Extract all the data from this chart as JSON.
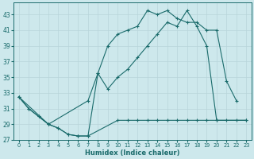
{
  "xlabel": "Humidex (Indice chaleur)",
  "bg_color": "#cde8ec",
  "grid_color": "#b8d5da",
  "line_color": "#1a6b6b",
  "xlim": [
    -0.5,
    23.5
  ],
  "ylim": [
    27,
    44.5
  ],
  "xticks": [
    0,
    1,
    2,
    3,
    4,
    5,
    6,
    7,
    8,
    9,
    10,
    11,
    12,
    13,
    14,
    15,
    16,
    17,
    18,
    19,
    20,
    21,
    22,
    23
  ],
  "yticks": [
    27,
    29,
    31,
    33,
    35,
    37,
    39,
    41,
    43
  ],
  "curve1_x": [
    0,
    1,
    2,
    3,
    4,
    5,
    6,
    7,
    8,
    9,
    10,
    11,
    12,
    13,
    14,
    15,
    16,
    17,
    18,
    19,
    20,
    21,
    22
  ],
  "curve1_y": [
    32.5,
    31.0,
    30.0,
    29.0,
    28.5,
    27.7,
    27.5,
    27.5,
    35.5,
    39.0,
    40.5,
    41.0,
    41.5,
    43.5,
    43.0,
    43.5,
    42.5,
    42.0,
    42.0,
    41.0,
    41.0,
    34.5,
    32.0
  ],
  "curve2_x": [
    0,
    3,
    7,
    8,
    9,
    10,
    11,
    12,
    13,
    14,
    15,
    16,
    17,
    18,
    19,
    20,
    23
  ],
  "curve2_y": [
    32.5,
    29.0,
    32.0,
    35.5,
    33.5,
    35.0,
    36.0,
    37.5,
    39.0,
    40.5,
    42.0,
    41.5,
    43.5,
    41.5,
    39.0,
    29.5,
    29.5
  ],
  "curve3_x": [
    0,
    1,
    2,
    3,
    4,
    5,
    6,
    7,
    10,
    11,
    12,
    13,
    14,
    15,
    16,
    17,
    18,
    19,
    20,
    21,
    22,
    23
  ],
  "curve3_y": [
    32.5,
    31.0,
    30.0,
    29.0,
    28.5,
    27.7,
    27.5,
    27.5,
    29.5,
    29.5,
    29.5,
    29.5,
    29.5,
    29.5,
    29.5,
    29.5,
    29.5,
    29.5,
    29.5,
    29.5,
    29.5,
    29.5
  ]
}
